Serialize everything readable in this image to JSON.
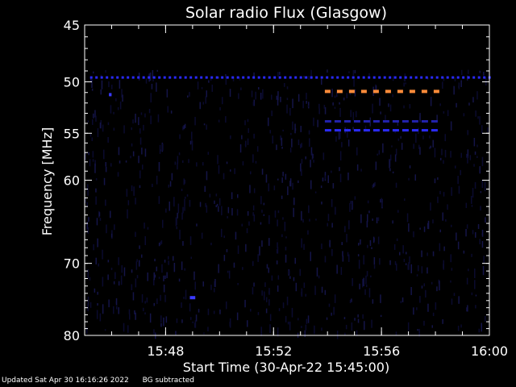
{
  "footer": {
    "updated": "Updated Sat Apr 30 16:16:26 2022",
    "note": "BG subtracted"
  },
  "chart_data": {
    "type": "heatmap",
    "title": "Solar radio Flux (Glasgow)",
    "xlabel": "Start Time (30-Apr-22 15:45:00)",
    "ylabel": "Frequency [MHz]",
    "xlim_minutes": [
      0,
      15
    ],
    "ylim_mhz": [
      45,
      80
    ],
    "y_scale": "log",
    "x_ticks": [
      {
        "label": "15:48",
        "minute": 3
      },
      {
        "label": "15:52",
        "minute": 7
      },
      {
        "label": "15:56",
        "minute": 11
      },
      {
        "label": "16:00",
        "minute": 15
      }
    ],
    "y_ticks": [
      {
        "label": "45",
        "mhz": 45
      },
      {
        "label": "50",
        "mhz": 50
      },
      {
        "label": "55",
        "mhz": 55
      },
      {
        "label": "60",
        "mhz": 60
      },
      {
        "label": "70",
        "mhz": 70
      },
      {
        "label": "80",
        "mhz": 80
      }
    ],
    "features": [
      {
        "name": "interference-band-blue",
        "mhz": 49.6,
        "start_min": 0.2,
        "end_min": 15.0,
        "color": "#2a2aff",
        "dashed": true
      },
      {
        "name": "interference-band-orange",
        "mhz": 50.9,
        "start_min": 8.9,
        "end_min": 13.1,
        "color": "#ff8c3a",
        "dashed": true
      },
      {
        "name": "interference-band-dark-blue",
        "mhz": 53.8,
        "start_min": 8.9,
        "end_min": 13.1,
        "color": "#2222aa",
        "dashed": true
      },
      {
        "name": "interference-band-blue-2",
        "mhz": 54.7,
        "start_min": 8.9,
        "end_min": 13.1,
        "color": "#2a2aff",
        "dashed": true
      },
      {
        "name": "spot-blue-1",
        "mhz": 51.2,
        "start_min": 0.9,
        "end_min": 1.0,
        "color": "#3a3aff",
        "dashed": false
      },
      {
        "name": "spot-blue-2",
        "mhz": 74.6,
        "start_min": 3.9,
        "end_min": 4.1,
        "color": "#3a3aff",
        "dashed": false
      }
    ],
    "colors": {
      "background": "#000000",
      "axes": "#ffffff",
      "noise": "#0a0a2e"
    }
  }
}
